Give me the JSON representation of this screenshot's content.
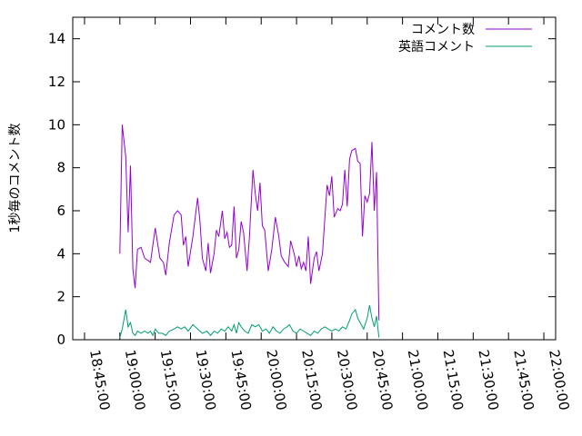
{
  "chart_data": {
    "type": "line",
    "ylabel": "1秒毎のコメント数",
    "xlabel": "",
    "ylim": [
      0,
      15
    ],
    "yticks": [
      0,
      2,
      4,
      6,
      8,
      10,
      12,
      14
    ],
    "xlim": [
      "18:40:00",
      "22:05:00"
    ],
    "xticks": [
      "18:45:00",
      "19:00:00",
      "19:15:00",
      "19:30:00",
      "19:45:00",
      "20:00:00",
      "20:15:00",
      "20:30:00",
      "20:45:00",
      "21:00:00",
      "21:15:00",
      "21:30:00",
      "21:45:00",
      "22:00:00"
    ],
    "legend_position": "top-right",
    "grid": false,
    "series": [
      {
        "name": "コメント数",
        "color": "#9400d3",
        "points": [
          [
            "19:00:00",
            4.0
          ],
          [
            "19:01:00",
            10.0
          ],
          [
            "19:02:30",
            8.5
          ],
          [
            "19:03:30",
            5.0
          ],
          [
            "19:04:30",
            8.1
          ],
          [
            "19:05:30",
            3.3
          ],
          [
            "19:06:30",
            2.4
          ],
          [
            "19:07:30",
            4.2
          ],
          [
            "19:09:00",
            4.3
          ],
          [
            "19:10:30",
            3.8
          ],
          [
            "19:13:00",
            3.6
          ],
          [
            "19:15:00",
            5.2
          ],
          [
            "19:17:00",
            3.8
          ],
          [
            "19:18:30",
            3.6
          ],
          [
            "19:19:30",
            3.0
          ],
          [
            "19:21:00",
            4.5
          ],
          [
            "19:23:00",
            5.8
          ],
          [
            "19:24:30",
            6.0
          ],
          [
            "19:26:00",
            5.8
          ],
          [
            "19:27:00",
            4.4
          ],
          [
            "19:28:00",
            4.8
          ],
          [
            "19:29:00",
            3.4
          ],
          [
            "19:31:00",
            4.8
          ],
          [
            "19:33:00",
            6.6
          ],
          [
            "19:34:00",
            5.5
          ],
          [
            "19:35:00",
            3.8
          ],
          [
            "19:36:30",
            3.2
          ],
          [
            "19:37:30",
            4.5
          ],
          [
            "19:38:30",
            3.1
          ],
          [
            "19:40:00",
            4.0
          ],
          [
            "19:41:00",
            5.1
          ],
          [
            "19:42:00",
            4.8
          ],
          [
            "19:43:30",
            6.0
          ],
          [
            "19:44:30",
            4.7
          ],
          [
            "19:45:30",
            5.0
          ],
          [
            "19:46:30",
            4.3
          ],
          [
            "19:47:30",
            4.4
          ],
          [
            "19:48:30",
            6.2
          ],
          [
            "19:49:30",
            3.8
          ],
          [
            "19:50:30",
            4.2
          ],
          [
            "19:51:30",
            5.5
          ],
          [
            "19:52:30",
            5.0
          ],
          [
            "19:54:00",
            3.2
          ],
          [
            "19:55:00",
            4.8
          ],
          [
            "19:56:30",
            7.9
          ],
          [
            "19:57:30",
            6.8
          ],
          [
            "19:58:30",
            6.0
          ],
          [
            "19:59:30",
            7.3
          ],
          [
            "20:00:30",
            5.3
          ],
          [
            "20:01:30",
            5.1
          ],
          [
            "20:03:00",
            3.2
          ],
          [
            "20:04:30",
            4.2
          ],
          [
            "20:06:00",
            5.7
          ],
          [
            "20:07:30",
            4.8
          ],
          [
            "20:08:30",
            3.9
          ],
          [
            "20:10:00",
            3.6
          ],
          [
            "20:11:30",
            3.4
          ],
          [
            "20:12:30",
            4.6
          ],
          [
            "20:14:00",
            4.0
          ],
          [
            "20:15:00",
            3.4
          ],
          [
            "20:16:00",
            3.9
          ],
          [
            "20:17:00",
            3.3
          ],
          [
            "20:18:00",
            3.6
          ],
          [
            "20:19:00",
            3.2
          ],
          [
            "20:20:00",
            4.8
          ],
          [
            "20:21:00",
            2.6
          ],
          [
            "20:22:30",
            3.8
          ],
          [
            "20:23:30",
            4.1
          ],
          [
            "20:24:30",
            3.2
          ],
          [
            "20:26:00",
            4.0
          ],
          [
            "20:28:00",
            7.2
          ],
          [
            "20:29:00",
            6.7
          ],
          [
            "20:30:00",
            7.6
          ],
          [
            "20:31:00",
            5.7
          ],
          [
            "20:32:30",
            6.1
          ],
          [
            "20:33:30",
            6.0
          ],
          [
            "20:34:30",
            6.3
          ],
          [
            "20:35:30",
            7.9
          ],
          [
            "20:36:30",
            6.2
          ],
          [
            "20:37:30",
            8.4
          ],
          [
            "20:38:30",
            8.8
          ],
          [
            "20:40:00",
            8.9
          ],
          [
            "20:41:00",
            8.3
          ],
          [
            "20:42:00",
            8.2
          ],
          [
            "20:43:00",
            4.8
          ],
          [
            "20:44:00",
            6.7
          ],
          [
            "20:45:00",
            6.4
          ],
          [
            "20:46:00",
            6.8
          ],
          [
            "20:47:00",
            9.2
          ],
          [
            "20:48:00",
            6.0
          ],
          [
            "20:49:00",
            7.8
          ],
          [
            "20:50:00",
            0.9
          ]
        ]
      },
      {
        "name": "英語コメント",
        "color": "#009e73",
        "points": [
          [
            "19:00:00",
            0.1
          ],
          [
            "19:01:00",
            0.5
          ],
          [
            "19:02:30",
            1.4
          ],
          [
            "19:03:30",
            0.6
          ],
          [
            "19:04:30",
            0.8
          ],
          [
            "19:05:30",
            0.3
          ],
          [
            "19:06:30",
            0.2
          ],
          [
            "19:07:30",
            0.4
          ],
          [
            "19:09:00",
            0.3
          ],
          [
            "19:10:30",
            0.4
          ],
          [
            "19:12:00",
            0.3
          ],
          [
            "19:13:00",
            0.4
          ],
          [
            "19:14:00",
            0.2
          ],
          [
            "19:15:00",
            0.5
          ],
          [
            "19:16:30",
            0.3
          ],
          [
            "19:18:00",
            0.3
          ],
          [
            "19:19:30",
            0.2
          ],
          [
            "19:21:00",
            0.4
          ],
          [
            "19:23:00",
            0.5
          ],
          [
            "19:24:30",
            0.6
          ],
          [
            "19:26:00",
            0.5
          ],
          [
            "19:27:30",
            0.6
          ],
          [
            "19:29:00",
            0.4
          ],
          [
            "19:31:00",
            0.7
          ],
          [
            "19:33:00",
            0.5
          ],
          [
            "19:35:00",
            0.3
          ],
          [
            "19:37:00",
            0.4
          ],
          [
            "19:38:30",
            0.2
          ],
          [
            "19:40:00",
            0.4
          ],
          [
            "19:41:30",
            0.3
          ],
          [
            "19:43:00",
            0.5
          ],
          [
            "19:44:30",
            0.4
          ],
          [
            "19:46:00",
            0.6
          ],
          [
            "19:47:30",
            0.4
          ],
          [
            "19:48:30",
            0.7
          ],
          [
            "19:49:30",
            0.3
          ],
          [
            "19:50:30",
            0.8
          ],
          [
            "19:51:30",
            0.6
          ],
          [
            "19:53:00",
            0.4
          ],
          [
            "19:54:30",
            0.3
          ],
          [
            "19:56:00",
            0.7
          ],
          [
            "19:57:30",
            0.6
          ],
          [
            "19:59:00",
            0.7
          ],
          [
            "20:00:30",
            0.4
          ],
          [
            "20:02:00",
            0.5
          ],
          [
            "20:03:30",
            0.3
          ],
          [
            "20:05:00",
            0.6
          ],
          [
            "20:06:30",
            0.4
          ],
          [
            "20:08:00",
            0.3
          ],
          [
            "20:09:30",
            0.5
          ],
          [
            "20:11:00",
            0.6
          ],
          [
            "20:12:00",
            0.7
          ],
          [
            "20:13:30",
            0.4
          ],
          [
            "20:15:00",
            0.3
          ],
          [
            "20:16:30",
            0.5
          ],
          [
            "20:18:00",
            0.4
          ],
          [
            "20:19:30",
            0.3
          ],
          [
            "20:21:00",
            0.2
          ],
          [
            "20:22:30",
            0.4
          ],
          [
            "20:24:00",
            0.3
          ],
          [
            "20:25:30",
            0.5
          ],
          [
            "20:27:00",
            0.6
          ],
          [
            "20:28:30",
            0.5
          ],
          [
            "20:30:00",
            0.4
          ],
          [
            "20:31:30",
            0.5
          ],
          [
            "20:33:00",
            0.4
          ],
          [
            "20:34:30",
            0.6
          ],
          [
            "20:36:00",
            0.5
          ],
          [
            "20:37:30",
            0.9
          ],
          [
            "20:38:30",
            1.2
          ],
          [
            "20:40:00",
            1.4
          ],
          [
            "20:41:00",
            1.0
          ],
          [
            "20:42:00",
            0.8
          ],
          [
            "20:43:30",
            0.5
          ],
          [
            "20:45:00",
            1.0
          ],
          [
            "20:46:00",
            1.6
          ],
          [
            "20:47:00",
            1.0
          ],
          [
            "20:48:00",
            0.6
          ],
          [
            "20:49:00",
            1.1
          ],
          [
            "20:50:00",
            0.1
          ]
        ]
      }
    ]
  }
}
